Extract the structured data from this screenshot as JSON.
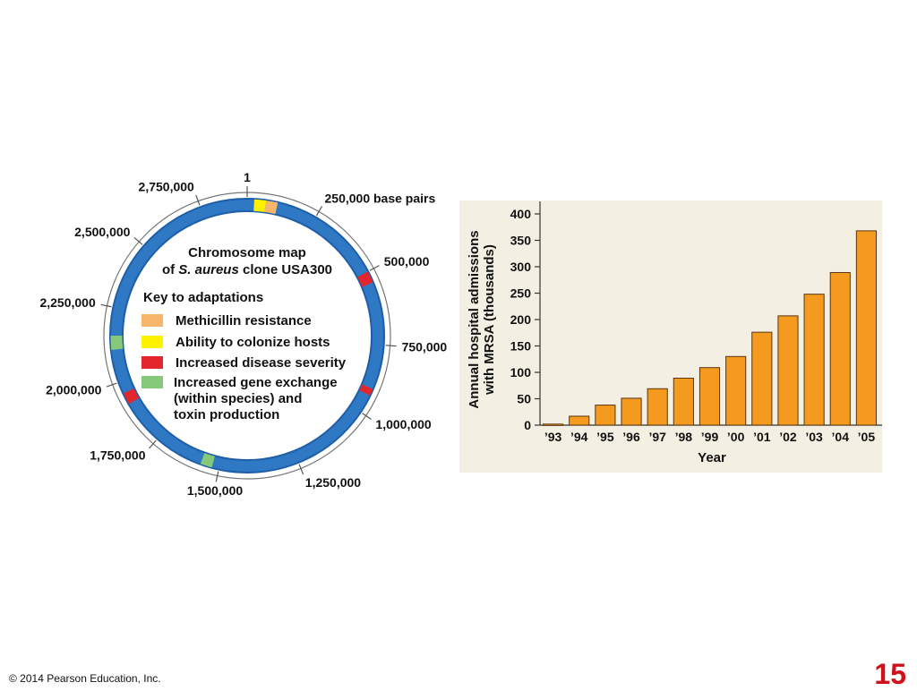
{
  "chromosome_map": {
    "title_line1": "Chromosome map",
    "title_of": "of ",
    "title_species": "S. aureus",
    "title_rest": " clone USA300",
    "key_title": "Key to adaptations",
    "ring_color": "#2f78c4",
    "position_labels": [
      {
        "angle": 0,
        "text": "1"
      },
      {
        "angle": 30,
        "text": "250,000 base pairs"
      },
      {
        "angle": 62,
        "text": "500,000"
      },
      {
        "angle": 94,
        "text": "750,000"
      },
      {
        "angle": 124,
        "text": "1,000,000"
      },
      {
        "angle": 158,
        "text": "1,250,000"
      },
      {
        "angle": 192,
        "text": "1,500,000"
      },
      {
        "angle": 221,
        "text": "1,750,000"
      },
      {
        "angle": 250,
        "text": "2,000,000"
      },
      {
        "angle": 282,
        "text": "2,250,000"
      },
      {
        "angle": 311,
        "text": "2,500,000"
      },
      {
        "angle": 340,
        "text": "2,750,000"
      }
    ],
    "adaptations": [
      {
        "name": "Methicillin resistance",
        "color": "#f6b56b"
      },
      {
        "name": "Ability to colonize hosts",
        "color": "#fef200"
      },
      {
        "name": "Increased disease severity",
        "color": "#e3262d"
      },
      {
        "name": "Increased gene exchange (within species) and toxin production",
        "color": "#86c97a",
        "lines": [
          "Increased gene exchange",
          "(within species) and",
          "toxin production"
        ]
      }
    ],
    "segments": [
      {
        "start": 8,
        "end": 13,
        "color": "#f6b56b"
      },
      {
        "start": 3,
        "end": 8,
        "color": "#fef200"
      },
      {
        "start": 62,
        "end": 67,
        "color": "#e3262d"
      },
      {
        "start": 113,
        "end": 116,
        "color": "#e3262d"
      },
      {
        "start": 195,
        "end": 200,
        "color": "#86c97a"
      },
      {
        "start": 240,
        "end": 245,
        "color": "#e3262d"
      },
      {
        "start": 264,
        "end": 270,
        "color": "#86c97a"
      }
    ]
  },
  "chart_data": {
    "type": "bar",
    "categories": [
      "’93",
      "’94",
      "’95",
      "’96",
      "’97",
      "’98",
      "’99",
      "’00",
      "’01",
      "’02",
      "’03",
      "’04",
      "’05"
    ],
    "values": [
      2,
      17,
      38,
      51,
      69,
      89,
      109,
      130,
      176,
      207,
      248,
      289,
      368
    ],
    "xlabel": "Year",
    "ylabel_lines": [
      "Annual hospital admissions",
      "with MRSA (thousands)"
    ],
    "ylim": [
      0,
      400
    ],
    "yticks": [
      0,
      50,
      100,
      150,
      200,
      250,
      300,
      350,
      400
    ],
    "bar_color": "#f39a1f",
    "background": "#f3f0e3"
  },
  "footer": {
    "copyright": "© 2014 Pearson Education, Inc.",
    "slide_number": "15"
  }
}
